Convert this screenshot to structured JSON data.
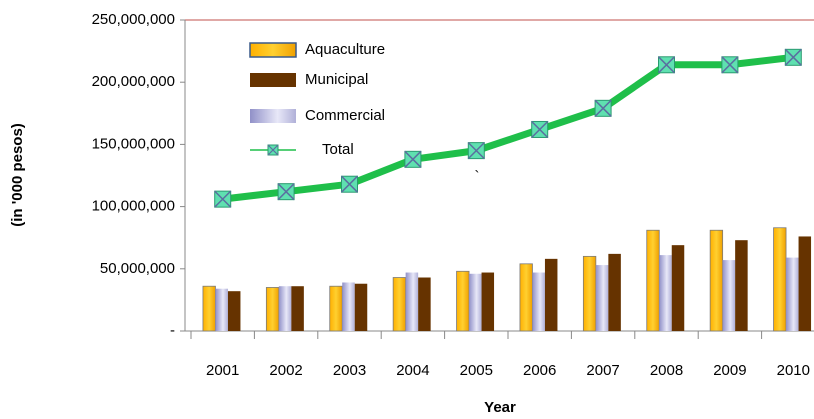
{
  "chart_data": {
    "type": "bar_line",
    "x_label": "Year",
    "y_label": "(in '000 pesos)",
    "annotation": "`",
    "categories": [
      "2001",
      "2002",
      "2003",
      "2004",
      "2005",
      "2006",
      "2007",
      "2008",
      "2009",
      "2010"
    ],
    "series": [
      {
        "name": "Aquaculture",
        "type": "bar",
        "color": "#ffc000",
        "values": [
          36000000,
          35000000,
          36000000,
          43000000,
          48000000,
          54000000,
          60000000,
          81000000,
          81000000,
          83000000
        ]
      },
      {
        "name": "Municipal",
        "type": "bar",
        "color": "#663300",
        "values": [
          32000000,
          36000000,
          38000000,
          43000000,
          47000000,
          58000000,
          62000000,
          69000000,
          73000000,
          76000000
        ]
      },
      {
        "name": "Commercial",
        "type": "bar",
        "color": "#b8b8e0",
        "values": [
          34000000,
          36000000,
          39000000,
          47000000,
          46000000,
          47000000,
          53000000,
          61000000,
          57000000,
          59000000
        ]
      },
      {
        "name": "Total",
        "type": "line",
        "color": "#1fbf4a",
        "values": [
          106000000,
          112000000,
          118000000,
          138000000,
          145000000,
          162000000,
          179000000,
          214000000,
          214000000,
          220000000
        ]
      }
    ],
    "ylim": [
      0,
      250000000
    ],
    "yticks": [
      {
        "value": 0,
        "label": "-"
      },
      {
        "value": 50000000,
        "label": "50,000,000"
      },
      {
        "value": 100000000,
        "label": "100,000,000"
      },
      {
        "value": 150000000,
        "label": "150,000,000"
      },
      {
        "value": 200000000,
        "label": "200,000,000"
      },
      {
        "value": 250000000,
        "label": "250,000,000"
      }
    ],
    "top_line_color": "#c0504d"
  }
}
